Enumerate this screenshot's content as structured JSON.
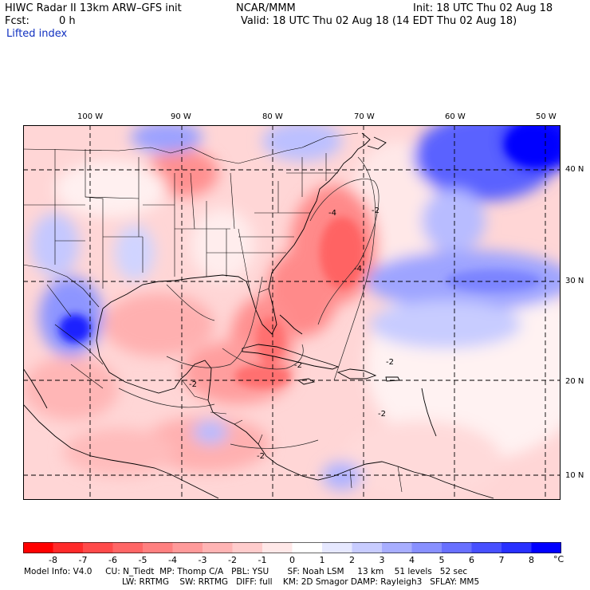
{
  "header": {
    "title": "HIWC Radar II 13km ARW–GFS init",
    "org": "NCAR/MMM",
    "init": "Init: 18 UTC Thu 02 Aug 18",
    "fcst_label": "Fcst:",
    "fcst_value": "0 h",
    "valid": "Valid: 18 UTC Thu 02 Aug 18 (14 EDT Thu 02 Aug 18)",
    "field": "Lifted index"
  },
  "axes": {
    "lon_labels": [
      "100 W",
      "90 W",
      "80 W",
      "70 W",
      "60 W",
      "50 W"
    ],
    "lat_labels": [
      "40 N",
      "30 N",
      "20 N",
      "10 N"
    ]
  },
  "contour_labels": [
    "-2",
    "-4",
    "-2",
    "-4",
    "-2",
    "-2",
    "-2",
    "-2"
  ],
  "colorbar": {
    "ticks": [
      "-8",
      "-7",
      "-6",
      "-5",
      "-4",
      "-3",
      "-2",
      "-1",
      "0",
      "1",
      "2",
      "3",
      "4",
      "5",
      "6",
      "7",
      "8"
    ],
    "unit": "°C",
    "colors": [
      "#ff0000",
      "#ff2a2a",
      "#ff4a4a",
      "#ff6666",
      "#ff8080",
      "#ff9a9a",
      "#ffb4b4",
      "#ffcccc",
      "#ffe8e8",
      "#ffffff",
      "#e6e8ff",
      "#c8ccff",
      "#a8aeff",
      "#8890ff",
      "#6870ff",
      "#4850ff",
      "#2830ff",
      "#0000ff"
    ]
  },
  "footer": {
    "line1": "Model Info: V4.0     CU: N_Tiedt  MP: Thomp C/A   PBL: YSU       SF: Noah LSM     13 km    51 levels   52 sec",
    "line2": "LW: RRTMG    SW: RRTMG   DIFF: full    KM: 2D Smagor DAMP: Rayleigh3   SFLAY: MM5"
  }
}
